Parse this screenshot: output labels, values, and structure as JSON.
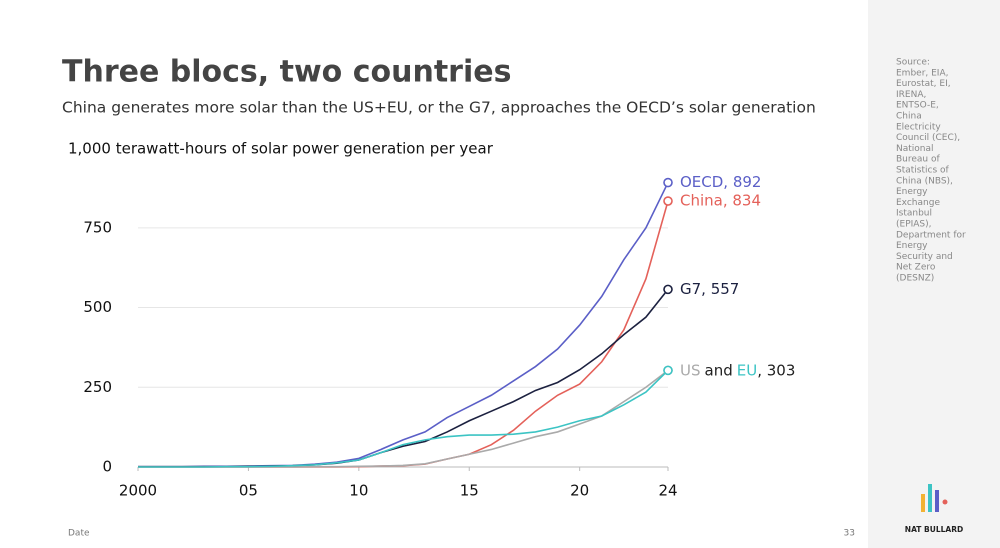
{
  "title": "Three blocs, two countries",
  "subtitle": "China generates more solar than the US+EU, or the G7, approaches the OECD’s solar generation",
  "chart_data": {
    "type": "line",
    "y_label": "1,000 terawatt-hours of solar power generation per year",
    "x": [
      2000,
      2001,
      2002,
      2003,
      2004,
      2005,
      2006,
      2007,
      2008,
      2009,
      2010,
      2011,
      2012,
      2013,
      2014,
      2015,
      2016,
      2017,
      2018,
      2019,
      2020,
      2021,
      2022,
      2023,
      2024
    ],
    "xlim": [
      2000,
      2024
    ],
    "xticks": [
      2000,
      {
        "value": 2005,
        "label": "05"
      },
      {
        "value": 2010,
        "label": "10"
      },
      {
        "value": 2015,
        "label": "15"
      },
      {
        "value": 2020,
        "label": "20"
      },
      {
        "value": 2024,
        "label": "24"
      }
    ],
    "ylim": [
      0,
      900
    ],
    "yticks": [
      0,
      250,
      500,
      750
    ],
    "grid": true,
    "series": [
      {
        "name": "OECD",
        "label": "OECD, 892",
        "color": "#5b5fc7",
        "values": [
          1,
          1,
          1,
          2,
          2,
          3,
          4,
          5,
          9,
          15,
          27,
          55,
          85,
          110,
          155,
          190,
          225,
          270,
          315,
          370,
          445,
          535,
          650,
          750,
          892
        ]
      },
      {
        "name": "China",
        "label": "China, 834",
        "color": "#e4615a",
        "values": [
          0,
          0,
          0,
          0,
          0,
          0,
          0,
          0,
          0,
          0,
          1,
          3,
          4,
          9,
          25,
          40,
          70,
          115,
          175,
          225,
          260,
          330,
          430,
          590,
          834
        ]
      },
      {
        "name": "G7",
        "label": "G7, 557",
        "color": "#1c2140",
        "values": [
          1,
          1,
          1,
          1,
          1,
          2,
          3,
          4,
          7,
          12,
          22,
          45,
          65,
          80,
          110,
          145,
          175,
          205,
          240,
          265,
          305,
          355,
          415,
          470,
          557
        ]
      },
      {
        "name": "US",
        "color": "#aaaaaa",
        "values": [
          0,
          0,
          0,
          0,
          0,
          0,
          0,
          0,
          1,
          1,
          2,
          3,
          5,
          10,
          25,
          40,
          55,
          75,
          95,
          110,
          135,
          160,
          205,
          250,
          303
        ]
      },
      {
        "name": "EU",
        "color": "#3cc4c4",
        "values": [
          0,
          0,
          0,
          0,
          1,
          1,
          2,
          4,
          7,
          13,
          22,
          45,
          70,
          85,
          95,
          100,
          100,
          103,
          110,
          125,
          145,
          160,
          195,
          235,
          303
        ]
      }
    ],
    "combined_label": [
      {
        "text": "US",
        "color": "#aaaaaa"
      },
      {
        "text": "and",
        "color": "#222222"
      },
      {
        "text": "EU",
        "color": "#3cc4c4"
      },
      {
        "text": ", 303",
        "color": "#222222"
      }
    ]
  },
  "sidebar": {
    "source_lines": [
      "Source:",
      "Ember, EIA,",
      "Eurostat, EI,",
      "IRENA,",
      "ENTSO-E,",
      "China",
      "Electricity",
      "Council (CEC),",
      "National",
      "Bureau of",
      "Statistics of",
      "China (NBS),",
      "Energy",
      "Exchange",
      "Istanbul",
      "(EPIAS),",
      "Department for",
      "Energy",
      "Security and",
      "Net Zero",
      "(DESNZ)"
    ],
    "brand": "NAT BULLARD"
  },
  "footer": {
    "left": "Date",
    "page": "33"
  }
}
